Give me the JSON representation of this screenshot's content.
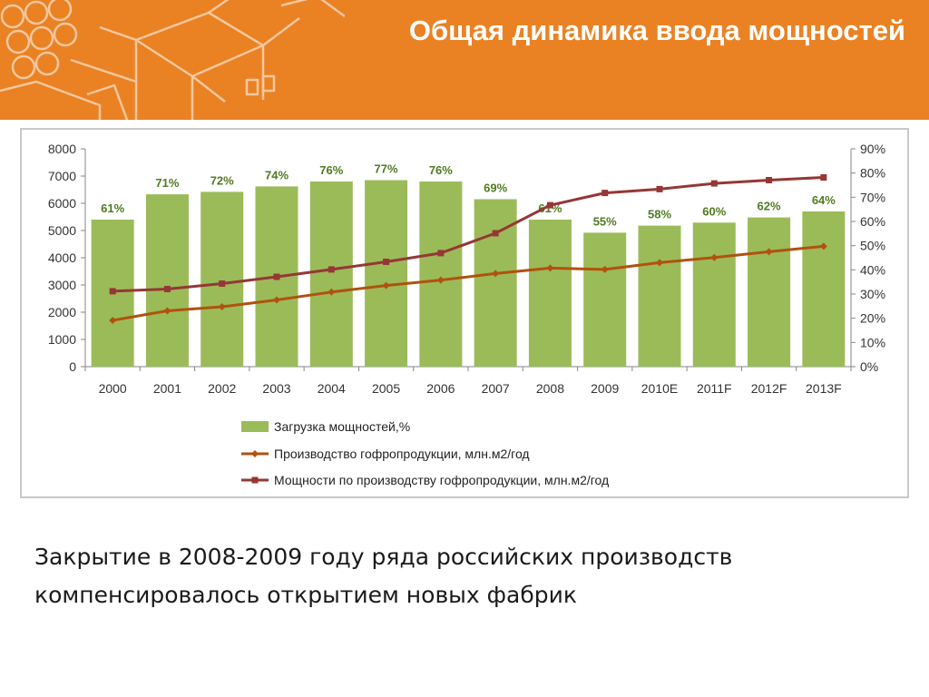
{
  "slide": {
    "title": "Общая динамика ввода мощностей",
    "caption_line1": "Закрытие в 2008-2009 году ряда российских производств",
    "caption_line2": "компенсировалось открытием новых фабрик"
  },
  "colors": {
    "header_bg": "#ea8224",
    "bar_fill": "#9bbb59",
    "bar_label": "#4f7a21",
    "production_line": "#b0520e",
    "capacity_line": "#953735"
  },
  "chart_data": {
    "type": "bar+line",
    "title": "",
    "categories": [
      "2000",
      "2001",
      "2002",
      "2003",
      "2004",
      "2005",
      "2006",
      "2007",
      "2008",
      "2009",
      "2010E",
      "2011F",
      "2012F",
      "2013F"
    ],
    "left_axis": {
      "min": 0,
      "max": 8000,
      "step": 1000
    },
    "right_axis": {
      "min": 0,
      "max": 90,
      "step": 10,
      "unit": "%"
    },
    "grid": false,
    "legend_position": "bottom",
    "series": [
      {
        "name": "Загрузка мощностей,%",
        "type": "bar",
        "axis": "left",
        "values": [
          5400,
          6330,
          6420,
          6620,
          6800,
          6850,
          6800,
          6150,
          5400,
          4920,
          5180,
          5290,
          5480,
          5700
        ],
        "labels": [
          "61%",
          "71%",
          "72%",
          "74%",
          "76%",
          "77%",
          "76%",
          "69%",
          "61%",
          "55%",
          "58%",
          "60%",
          "62%",
          "64%"
        ]
      },
      {
        "name": "Производство гофропродукции, млн.м2/год",
        "type": "line",
        "axis": "left",
        "values": [
          1700,
          2050,
          2200,
          2450,
          2740,
          2980,
          3180,
          3420,
          3620,
          3570,
          3820,
          4010,
          4220,
          4420
        ]
      },
      {
        "name": "Мощности по производству гофропродукции, млн.м2/год",
        "type": "line",
        "axis": "left",
        "values": [
          2770,
          2850,
          3050,
          3300,
          3570,
          3850,
          4170,
          4900,
          5930,
          6380,
          6520,
          6730,
          6850,
          6950
        ]
      }
    ]
  }
}
